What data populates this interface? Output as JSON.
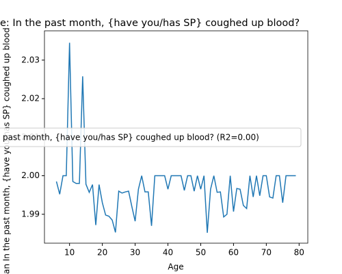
{
  "chart_data": {
    "type": "line",
    "title": "e: In the past month, {have you/has SP} coughed up blood?",
    "xlabel": "Age",
    "ylabel": "an In the past month, {have you/has SP} coughed up blood",
    "annotation": "past month, {have you/has SP} coughed up blood? (R2=0.00)",
    "x": [
      6,
      7,
      8,
      9,
      10,
      11,
      12,
      13,
      14,
      15,
      16,
      17,
      18,
      19,
      20,
      21,
      22,
      23,
      24,
      25,
      26,
      27,
      28,
      29,
      30,
      31,
      32,
      33,
      34,
      35,
      36,
      37,
      38,
      39,
      40,
      41,
      42,
      43,
      44,
      45,
      46,
      47,
      48,
      49,
      50,
      51,
      52,
      53,
      54,
      55,
      56,
      57,
      58,
      59,
      60,
      61,
      62,
      63,
      64,
      65,
      66,
      67,
      68,
      69,
      70,
      71,
      72,
      73,
      74,
      75,
      76,
      77,
      78,
      79
    ],
    "series": [
      {
        "color": "#1f77b4",
        "values": [
          1.9985,
          1.9952,
          2.0,
          2.0,
          2.0345,
          1.9985,
          1.998,
          1.998,
          2.0258,
          1.9978,
          1.9957,
          1.9977,
          1.9872,
          1.9977,
          1.993,
          1.9898,
          1.9895,
          1.9885,
          1.9853,
          1.996,
          1.9955,
          1.9958,
          1.996,
          1.992,
          1.9882,
          1.9965,
          2.0,
          1.9958,
          1.9958,
          1.987,
          2.0,
          2.0,
          2.0,
          2.0,
          1.9965,
          2.0,
          2.0,
          2.0,
          2.0,
          1.9962,
          2.0,
          2.0,
          1.996,
          2.0,
          1.9965,
          2.0,
          1.9852,
          1.9965,
          2.0,
          1.9957,
          1.9958,
          1.9893,
          1.99,
          2.0,
          1.9907,
          1.9967,
          1.9965,
          1.9923,
          1.9915,
          2.0,
          1.9945,
          2.0,
          1.9948,
          2.0,
          2.0,
          1.9945,
          1.9942,
          2.0,
          2.0,
          1.993,
          2.0,
          2.0,
          2.0,
          2.0
        ]
      }
    ],
    "xlim": [
      2.35,
      82.65
    ],
    "xticks": [
      10,
      20,
      30,
      40,
      50,
      60,
      70,
      80
    ],
    "ylim": [
      1.9825,
      2.0376
    ],
    "yticks": [
      1.99,
      {
        "value": 2.0,
        "label": "2.00"
      },
      2.01,
      2.02,
      2.03
    ]
  }
}
